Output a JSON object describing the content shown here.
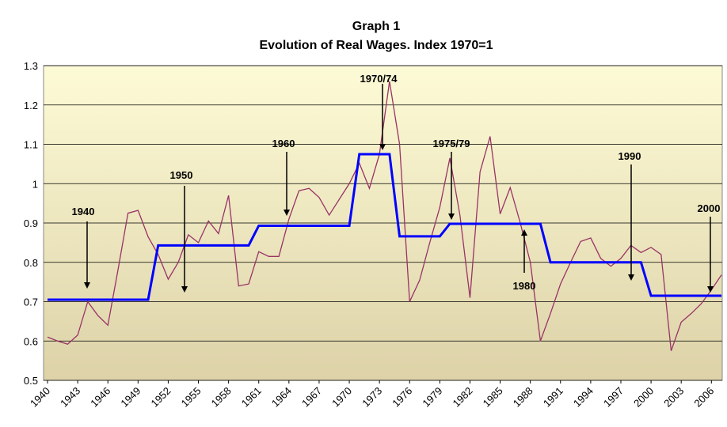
{
  "chart_data": {
    "type": "line",
    "title": "Graph 1",
    "subtitle": "Evolution of Real Wages. Index 1970=1",
    "x": [
      1940,
      1941,
      1942,
      1943,
      1944,
      1945,
      1946,
      1947,
      1948,
      1949,
      1950,
      1951,
      1952,
      1953,
      1954,
      1955,
      1956,
      1957,
      1958,
      1959,
      1960,
      1961,
      1962,
      1963,
      1964,
      1965,
      1966,
      1967,
      1968,
      1969,
      1970,
      1971,
      1972,
      1973,
      1974,
      1975,
      1976,
      1977,
      1978,
      1979,
      1980,
      1981,
      1982,
      1983,
      1984,
      1985,
      1986,
      1987,
      1988,
      1989,
      1990,
      1991,
      1992,
      1993,
      1994,
      1995,
      1996,
      1997,
      1998,
      1999,
      2000,
      2001,
      2002,
      2003,
      2004,
      2005,
      2006,
      2007
    ],
    "series": [
      {
        "color": "#993366",
        "values": [
          0.61,
          0.6,
          0.592,
          0.615,
          0.7,
          0.665,
          0.64,
          0.78,
          0.925,
          0.932,
          0.865,
          0.82,
          0.757,
          0.8,
          0.87,
          0.85,
          0.905,
          0.873,
          0.97,
          0.74,
          0.745,
          0.827,
          0.815,
          0.815,
          0.91,
          0.982,
          0.988,
          0.965,
          0.92,
          0.96,
          1.0,
          1.052,
          0.988,
          1.075,
          1.26,
          1.1,
          0.7,
          0.755,
          0.85,
          0.94,
          1.065,
          0.92,
          0.71,
          1.03,
          1.12,
          0.923,
          0.99,
          0.9,
          0.8,
          0.6,
          0.67,
          0.745,
          0.8,
          0.853,
          0.862,
          0.81,
          0.79,
          0.81,
          0.843,
          0.825,
          0.838,
          0.82,
          0.575,
          0.648,
          0.67,
          0.695,
          0.73,
          0.768
        ]
      },
      {
        "color": "#0000ff",
        "values": [
          0.705,
          0.705,
          0.705,
          0.705,
          0.705,
          0.705,
          0.705,
          0.705,
          0.705,
          0.705,
          0.705,
          0.843,
          0.843,
          0.843,
          0.843,
          0.843,
          0.843,
          0.843,
          0.843,
          0.843,
          0.843,
          0.893,
          0.893,
          0.893,
          0.893,
          0.893,
          0.893,
          0.893,
          0.893,
          0.893,
          0.893,
          1.075,
          1.075,
          1.075,
          1.075,
          0.866,
          0.866,
          0.866,
          0.866,
          0.866,
          0.898,
          0.898,
          0.898,
          0.898,
          0.898,
          0.898,
          0.898,
          0.898,
          0.898,
          0.898,
          0.8,
          0.8,
          0.8,
          0.8,
          0.8,
          0.8,
          0.8,
          0.8,
          0.8,
          0.8,
          0.715,
          0.715,
          0.715,
          0.715,
          0.715,
          0.715,
          0.715,
          0.715
        ]
      }
    ],
    "xlim": [
      1940,
      2007
    ],
    "xticks": [
      1940,
      1943,
      1946,
      1949,
      1952,
      1955,
      1958,
      1961,
      1964,
      1967,
      1970,
      1973,
      1976,
      1979,
      1982,
      1985,
      1988,
      1991,
      1994,
      1997,
      2000,
      2003,
      2006
    ],
    "ylim": [
      0.5,
      1.3
    ],
    "yticks": [
      0.5,
      0.6,
      0.7,
      0.8,
      0.9,
      1,
      1.1,
      1.2,
      1.3
    ],
    "grid": true,
    "annotations": [
      "1940",
      "1950",
      "1960",
      "1970/74",
      "1975/79",
      "1980",
      "1990",
      "2000"
    ]
  }
}
